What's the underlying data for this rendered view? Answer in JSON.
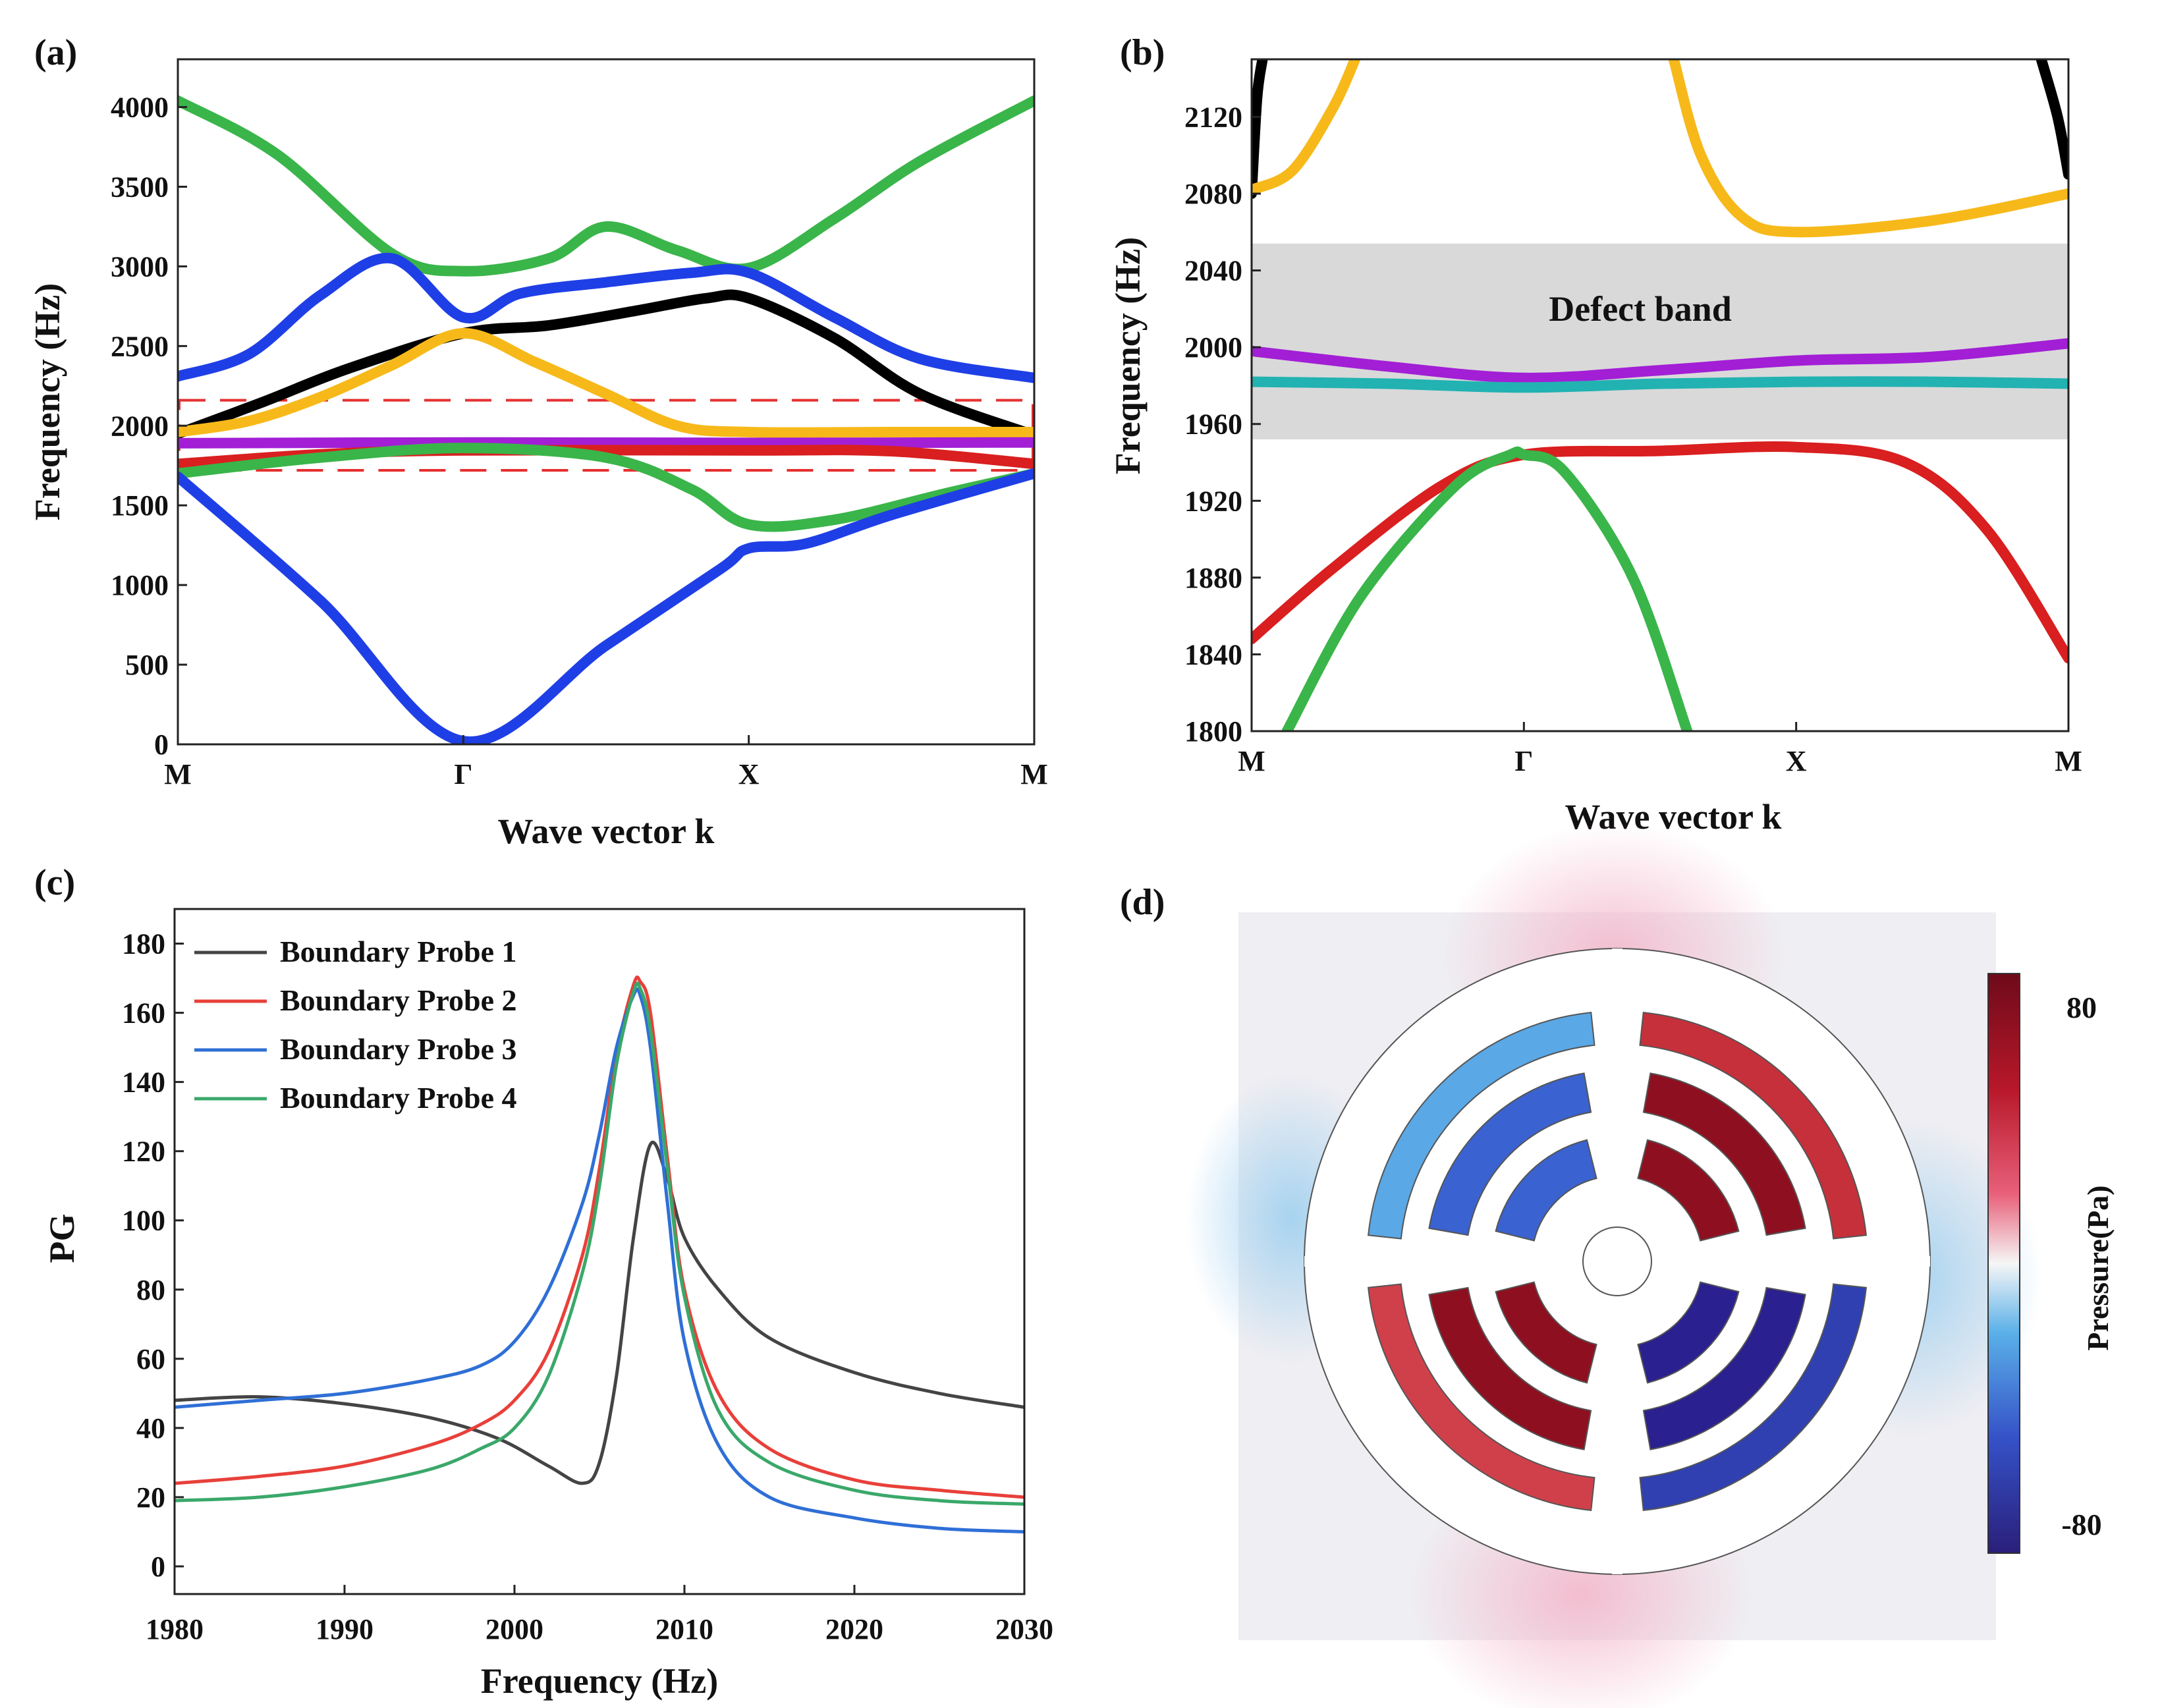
{
  "panels": {
    "a": {
      "label": "(a)",
      "chart_data": {
        "type": "line",
        "xlabel": "Wave vector k",
        "ylabel": "Frequency (Hz)",
        "x_ticks": [
          "M",
          "Γ",
          "X",
          "M"
        ],
        "y_ticks": [
          0,
          500,
          1000,
          1500,
          2000,
          2500,
          3000,
          3500,
          4000
        ],
        "xlim": [
          0,
          3
        ],
        "ylim": [
          0,
          4300
        ],
        "highlight_band": [
          1720,
          2160
        ],
        "series": [
          {
            "name": "band-green-upper",
            "color": "#3ab54a",
            "x": [
              0,
              0.35,
              0.75,
              1.0,
              1.3,
              1.5,
              1.75,
              2.0,
              2.3,
              2.6,
              3.0
            ],
            "y": [
              4040,
              3700,
              3080,
              2970,
              3050,
              3250,
              3100,
              2990,
              3300,
              3660,
              4040
            ]
          },
          {
            "name": "band-blue-upper",
            "color": "#1f3fe6",
            "x": [
              0,
              0.25,
              0.5,
              0.75,
              1.0,
              1.2,
              1.5,
              1.8,
              2.0,
              2.3,
              2.6,
              3.0
            ],
            "y": [
              2310,
              2450,
              2820,
              3050,
              2680,
              2830,
              2900,
              2960,
              2960,
              2680,
              2420,
              2300
            ]
          },
          {
            "name": "band-black",
            "color": "#000000",
            "x": [
              0,
              0.3,
              0.6,
              1.0,
              1.3,
              1.6,
              1.85,
              2.0,
              2.3,
              2.6,
              3.0
            ],
            "y": [
              1950,
              2150,
              2360,
              2580,
              2630,
              2720,
              2800,
              2800,
              2550,
              2200,
              1940
            ]
          },
          {
            "name": "band-yellow",
            "color": "#f7b91a",
            "x": [
              0,
              0.25,
              0.5,
              0.75,
              1.0,
              1.25,
              1.5,
              1.75,
              2.0,
              2.5,
              3.0
            ],
            "y": [
              1960,
              2030,
              2180,
              2380,
              2580,
              2400,
              2200,
              2000,
              1960,
              1960,
              1960
            ]
          },
          {
            "name": "band-purple",
            "color": "#a21fd6",
            "x": [
              0,
              1.0,
              2.0,
              3.0
            ],
            "y": [
              1890,
              1895,
              1892,
              1895
            ]
          },
          {
            "name": "band-red",
            "color": "#d91f1f",
            "x": [
              0,
              0.5,
              1.0,
              2.0,
              2.5,
              3.0
            ],
            "y": [
              1760,
              1820,
              1845,
              1845,
              1840,
              1760
            ]
          },
          {
            "name": "band-green-lower",
            "color": "#3ab54a",
            "x": [
              0,
              0.5,
              1.0,
              1.5,
              1.8,
              2.0,
              2.3,
              2.7,
              3.0
            ],
            "y": [
              1700,
              1800,
              1860,
              1800,
              1600,
              1380,
              1410,
              1580,
              1700
            ]
          },
          {
            "name": "band-blue-lower",
            "color": "#1f3fe6",
            "x": [
              0,
              0.5,
              1.0,
              1.5,
              1.9,
              2.0,
              2.2,
              2.5,
              3.0
            ],
            "y": [
              1680,
              900,
              20,
              620,
              1100,
              1230,
              1260,
              1440,
              1700
            ]
          }
        ]
      }
    },
    "b": {
      "label": "(b)",
      "chart_data": {
        "type": "line",
        "xlabel": "Wave vector k",
        "ylabel": "Frequency (Hz)",
        "x_ticks": [
          "M",
          "Γ",
          "X",
          "M"
        ],
        "y_ticks": [
          1800,
          1840,
          1880,
          1920,
          1960,
          2000,
          2040,
          2080,
          2120
        ],
        "xlim": [
          0,
          3
        ],
        "ylim": [
          1800,
          2150
        ],
        "shaded_band": [
          1952,
          2054
        ],
        "annotation": "Defect band",
        "series": [
          {
            "name": "band-black-left",
            "color": "#000000",
            "x": [
              0,
              0.02,
              0.04
            ],
            "y": [
              2080,
              2130,
              2150
            ]
          },
          {
            "name": "band-black-right",
            "color": "#000000",
            "x": [
              2.9,
              2.96,
              3.0
            ],
            "y": [
              2150,
              2120,
              2090
            ]
          },
          {
            "name": "band-yellow-left",
            "color": "#f7b91a",
            "x": [
              0,
              0.15,
              0.3,
              0.38
            ],
            "y": [
              2082,
              2092,
              2125,
              2150
            ]
          },
          {
            "name": "band-yellow-right",
            "color": "#f7b91a",
            "x": [
              1.55,
              1.65,
              1.8,
              2.0,
              2.5,
              3.0
            ],
            "y": [
              2150,
              2100,
              2068,
              2060,
              2066,
              2080
            ]
          },
          {
            "name": "band-purple",
            "color": "#a21fd6",
            "x": [
              0,
              0.5,
              1.0,
              1.5,
              2.0,
              2.5,
              3.0
            ],
            "y": [
              1998,
              1990,
              1984,
              1988,
              1993,
              1995,
              2002
            ]
          },
          {
            "name": "band-cyan",
            "color": "#22b2b2",
            "x": [
              0,
              0.5,
              1.0,
              1.5,
              2.0,
              2.5,
              3.0
            ],
            "y": [
              1982,
              1981,
              1979,
              1981,
              1982,
              1982,
              1981
            ]
          },
          {
            "name": "band-red",
            "color": "#d91f1f",
            "x": [
              0,
              0.3,
              0.7,
              1.0,
              1.5,
              2.0,
              2.4,
              2.7,
              3.0
            ],
            "y": [
              1848,
              1885,
              1928,
              1944,
              1946,
              1948,
              1940,
              1905,
              1838
            ]
          },
          {
            "name": "band-green",
            "color": "#3ab54a",
            "x": [
              0.13,
              0.4,
              0.75,
              0.95,
              1.0,
              1.15,
              1.4,
              1.6
            ],
            "y": [
              1800,
              1870,
              1928,
              1944,
              1944,
              1935,
              1880,
              1800
            ]
          }
        ]
      }
    },
    "c": {
      "label": "(c)",
      "chart_data": {
        "type": "line",
        "xlabel": "Frequency (Hz)",
        "ylabel": "PG",
        "x_ticks": [
          1980,
          1990,
          2000,
          2010,
          2020,
          2030
        ],
        "y_ticks": [
          0,
          20,
          40,
          60,
          80,
          100,
          120,
          140,
          160,
          180
        ],
        "xlim": [
          1980,
          2030
        ],
        "ylim": [
          -8,
          190
        ],
        "legend_position": "top-left",
        "series": [
          {
            "name": "Boundary Probe 1",
            "color": "#444444",
            "x": [
              1980,
              1985,
              1990,
              1995,
              1999,
              2002,
              2004,
              2005,
              2006,
              2007,
              2008,
              2009,
              2010,
              2012,
              2015,
              2020,
              2025,
              2030
            ],
            "y": [
              48,
              49,
              47,
              43,
              37,
              29,
              24,
              30,
              55,
              95,
              122,
              112,
              95,
              80,
              66,
              56,
              50,
              46
            ]
          },
          {
            "name": "Boundary Probe 2",
            "color": "#e8403a",
            "x": [
              1980,
              1985,
              1990,
              1995,
              1998,
              2000,
              2002,
              2004,
              2005,
              2006,
              2007,
              2007.4,
              2008,
              2009,
              2010,
              2012,
              2015,
              2020,
              2025,
              2030
            ],
            "y": [
              24,
              26,
              29,
              35,
              41,
              48,
              62,
              90,
              115,
              148,
              168,
              169,
              160,
              118,
              80,
              50,
              34,
              25,
              22,
              20
            ]
          },
          {
            "name": "Boundary Probe 3",
            "color": "#2f6fd6",
            "x": [
              1980,
              1985,
              1990,
              1995,
              1998,
              2000,
              2002,
              2004,
              2005,
              2006,
              2007,
              2007.4,
              2008,
              2009,
              2010,
              2012,
              2015,
              2020,
              2025,
              2030
            ],
            "y": [
              46,
              48,
              50,
              54,
              58,
              65,
              80,
              105,
              125,
              150,
              165,
              165,
              150,
              105,
              65,
              35,
              20,
              14,
              11,
              10
            ]
          },
          {
            "name": "Boundary Probe 4",
            "color": "#3aa86a",
            "x": [
              1980,
              1985,
              1990,
              1995,
              1998,
              2000,
              2002,
              2004,
              2005,
              2006,
              2007,
              2007.4,
              2008,
              2009,
              2010,
              2012,
              2015,
              2020,
              2025,
              2030
            ],
            "y": [
              19,
              20,
              23,
              28,
              34,
              40,
              55,
              85,
              110,
              145,
              166,
              167,
              155,
              115,
              78,
              45,
              30,
              22,
              19,
              18
            ]
          }
        ]
      }
    },
    "d": {
      "label": "(d)",
      "colorbar": {
        "title": "Pressure(Pa)",
        "max_label": "80",
        "min_label": "-80",
        "high_color": "#7a0e1e",
        "mid_color": "#f4f4f4",
        "low_color": "#2a2a8c"
      }
    }
  }
}
